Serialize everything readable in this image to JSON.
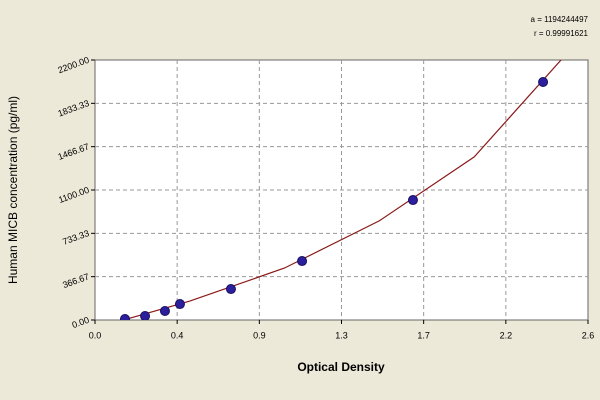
{
  "chart_data": {
    "type": "scatter",
    "xlabel": "Optical Density",
    "ylabel": "Human MICB concentration (pg/ml)",
    "annotations": [
      "a = 1194244497",
      "r = 0.99991621"
    ],
    "points": {
      "color": "#2b1f9e",
      "x": [
        0.158,
        0.264,
        0.369,
        0.448,
        0.717,
        1.092,
        1.677,
        2.363
      ],
      "y": [
        8,
        34,
        76,
        135,
        262,
        499,
        1015,
        2014
      ]
    },
    "curve": {
      "color": "#8b1a1a",
      "x": [
        0.15,
        0.5,
        1.0,
        1.5,
        2.0,
        2.48
      ],
      "y": [
        0,
        160,
        440,
        840,
        1380,
        2240
      ]
    },
    "xlim": [
      0,
      2.6
    ],
    "ylim": [
      0,
      2200
    ],
    "xticks": [
      {
        "value": 0,
        "label": "0.0"
      },
      {
        "value": 0.4333,
        "label": "0.4"
      },
      {
        "value": 0.8667,
        "label": "0.9"
      },
      1.3,
      {
        "value": 1.7333,
        "label": "1.7"
      },
      {
        "value": 2.1667,
        "label": "2.2"
      },
      2.6
    ],
    "yticks": [
      {
        "value": 0,
        "label": "0.00"
      },
      366.67,
      733.33,
      {
        "value": 1100,
        "label": "1100.00"
      },
      1466.67,
      1833.33,
      {
        "value": 2200,
        "label": "2200.00"
      }
    ],
    "grid": true
  }
}
